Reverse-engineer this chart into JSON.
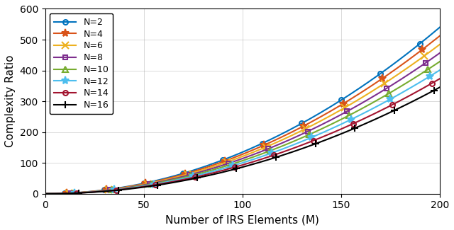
{
  "M_min": 0,
  "M_max": 200,
  "M_step": 1,
  "series": [
    {
      "label": "N=2",
      "N": 2,
      "color": "#0072BD",
      "marker": "o",
      "markersize": 5,
      "markevery": 10
    },
    {
      "label": "N=4",
      "N": 4,
      "color": "#D95319",
      "marker": "*",
      "markersize": 8,
      "markevery": 10
    },
    {
      "label": "N=6",
      "N": 6,
      "color": "#EDB120",
      "marker": "x",
      "markersize": 7,
      "markevery": 10
    },
    {
      "label": "N=8",
      "N": 8,
      "color": "#7E2F8E",
      "marker": "s",
      "markersize": 5,
      "markevery": 10
    },
    {
      "label": "N=10",
      "N": 10,
      "color": "#77AC30",
      "marker": "^",
      "markersize": 6,
      "markevery": 10
    },
    {
      "label": "N=12",
      "N": 12,
      "color": "#4DBEEE",
      "marker": "*",
      "markersize": 8,
      "markevery": 10
    },
    {
      "label": "N=14",
      "N": 14,
      "color": "#A2142F",
      "marker": "o",
      "markersize": 5,
      "markevery": 10
    },
    {
      "label": "N=16",
      "N": 16,
      "color": "#000000",
      "marker": "+",
      "markersize": 7,
      "markevery": 10
    }
  ],
  "cr_at_M200_N2": 540,
  "cr_slope_per_N": 13.9,
  "xlabel": "Number of IRS Elements (M)",
  "ylabel": "Complexity Ratio",
  "xlim": [
    0,
    200
  ],
  "ylim": [
    0,
    600
  ],
  "xticks": [
    0,
    50,
    100,
    150,
    200
  ],
  "yticks": [
    0,
    100,
    200,
    300,
    400,
    500,
    600
  ],
  "grid": true,
  "legend_loc": "upper left",
  "figsize": [
    6.4,
    3.25
  ],
  "dpi": 100
}
